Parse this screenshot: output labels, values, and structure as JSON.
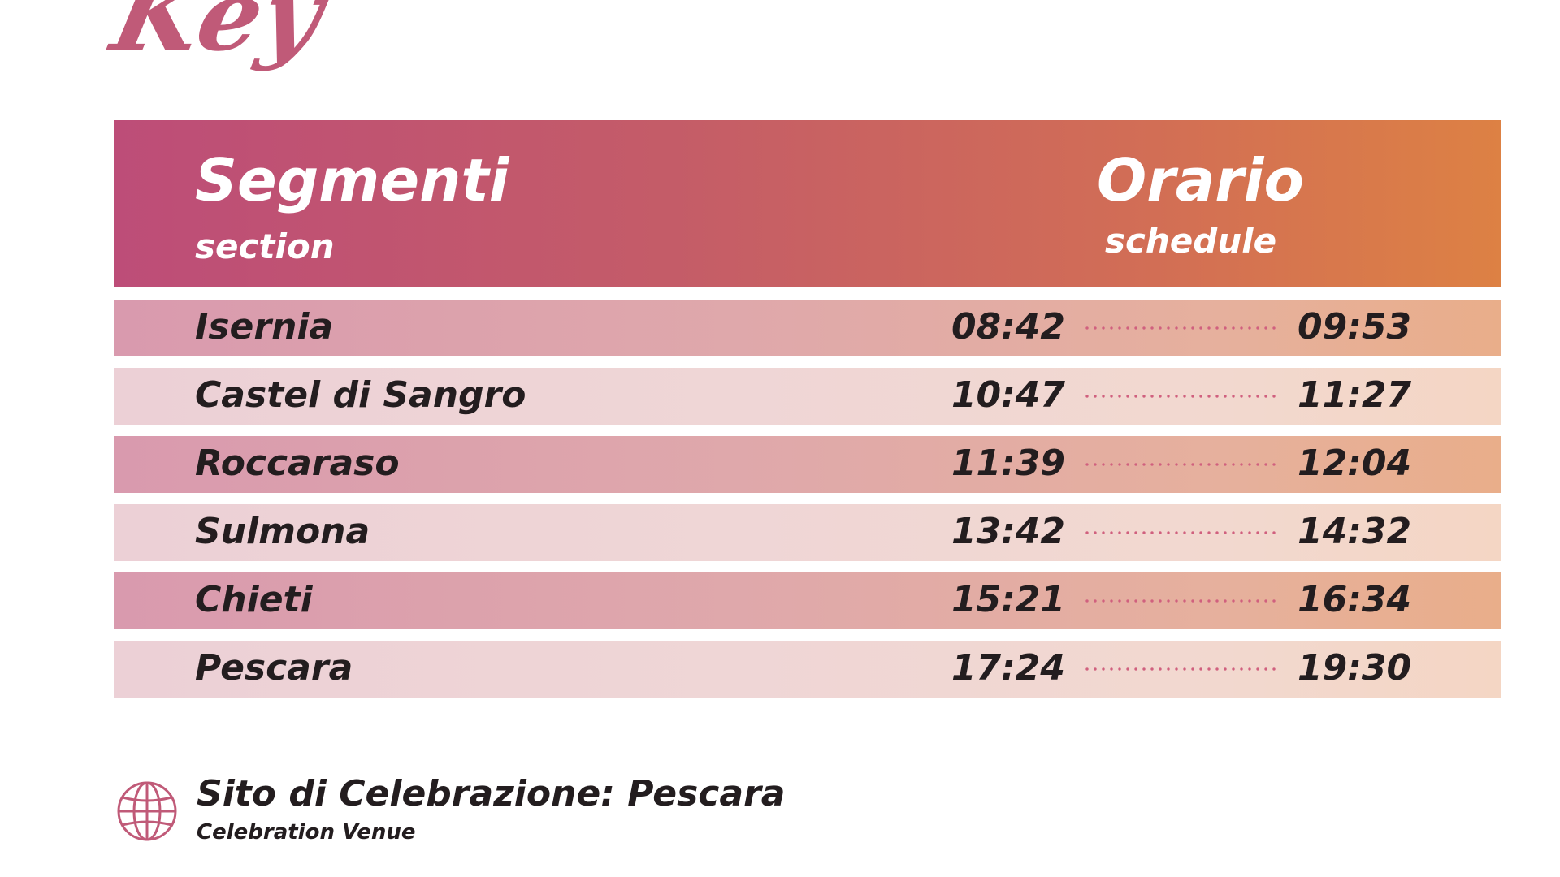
{
  "key_title": "Key",
  "header": {
    "segments_title": "Segmenti",
    "segments_subtitle": "section",
    "schedule_title": "Orario",
    "schedule_subtitle": "schedule"
  },
  "rows": [
    {
      "name": "Isernia",
      "start": "08:42",
      "end": "09:53"
    },
    {
      "name": "Castel di Sangro",
      "start": "10:47",
      "end": "11:27"
    },
    {
      "name": "Roccaraso",
      "start": "11:39",
      "end": "12:04"
    },
    {
      "name": "Sulmona",
      "start": "13:42",
      "end": "14:32"
    },
    {
      "name": "Chieti",
      "start": "15:21",
      "end": "16:34"
    },
    {
      "name": "Pescara",
      "start": "17:24",
      "end": "19:30"
    }
  ],
  "venue": {
    "icon": "globe-icon",
    "title": "Sito di Celebrazione: Pescara",
    "subtitle": "Celebration Venue"
  },
  "colors": {
    "accent": "#c05a78",
    "header_gradient_start": "#bd4d78",
    "header_gradient_end": "#dd8144",
    "text": "#231d1f"
  }
}
